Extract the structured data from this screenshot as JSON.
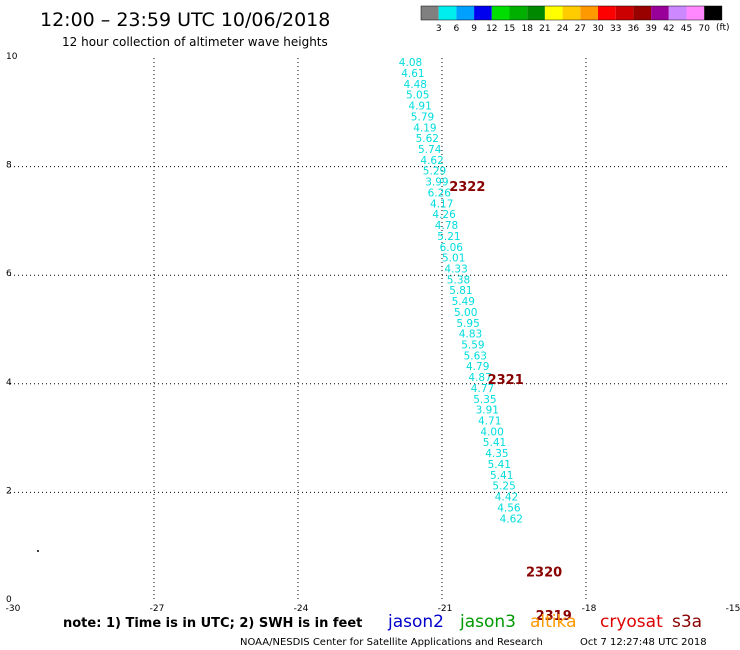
{
  "header": {
    "title": "12:00 – 23:59 UTC 10/06/2018",
    "subtitle": "12 hour collection of altimeter wave heights"
  },
  "colorbar": {
    "unit": "(ft)",
    "labels": [
      "3",
      "6",
      "9",
      "12",
      "15",
      "18",
      "21",
      "24",
      "27",
      "30",
      "33",
      "36",
      "39",
      "42",
      "45",
      "70"
    ],
    "colors": [
      "#808080",
      "#00eeee",
      "#00a0ff",
      "#0000ee",
      "#00dd00",
      "#00b000",
      "#008800",
      "#ffff00",
      "#ffcc00",
      "#ff9900",
      "#ff0000",
      "#cc0000",
      "#990000",
      "#990099",
      "#cc88ff",
      "#ff88ff",
      "#000000"
    ]
  },
  "footer": {
    "note": "note: 1) Time is in UTC; 2) SWH is in feet",
    "credit": "NOAA/NESDIS Center for Satellite Applications and Research",
    "timestamp": "Oct  7 12:27:48 UTC 2018",
    "satellites": [
      {
        "name": "jason2",
        "color": "#0000cc"
      },
      {
        "name": "jason3",
        "color": "#009900"
      },
      {
        "name": "altika",
        "color": "#ff9900"
      },
      {
        "name": "cryosat",
        "color": "#dd0000"
      },
      {
        "name": "s3a",
        "color": "#880000"
      }
    ]
  },
  "chart_data": {
    "type": "scatter",
    "title": "",
    "xlabel": "",
    "ylabel": "",
    "xlim": [
      -30,
      -15
    ],
    "ylim": [
      0,
      10
    ],
    "x_ticks": [
      -30,
      -27,
      -24,
      -21,
      -18,
      -15
    ],
    "y_ticks": [
      0,
      2,
      4,
      6,
      8,
      10
    ],
    "grid": true,
    "point_color": "#00dddd",
    "series": [
      {
        "values": [
          {
            "x": -21.9,
            "y": 9.85,
            "label": "4.08"
          },
          {
            "x": -21.85,
            "y": 9.65,
            "label": "4.61"
          },
          {
            "x": -21.8,
            "y": 9.45,
            "label": "4.48"
          },
          {
            "x": -21.75,
            "y": 9.25,
            "label": "5.05"
          },
          {
            "x": -21.7,
            "y": 9.05,
            "label": "4.91"
          },
          {
            "x": -21.65,
            "y": 8.85,
            "label": "5.79"
          },
          {
            "x": -21.6,
            "y": 8.65,
            "label": "4.19"
          },
          {
            "x": -21.55,
            "y": 8.45,
            "label": "5.62"
          },
          {
            "x": -21.5,
            "y": 8.25,
            "label": "5.74"
          },
          {
            "x": -21.45,
            "y": 8.05,
            "label": "4.62"
          },
          {
            "x": -21.4,
            "y": 7.85,
            "label": "5.29"
          },
          {
            "x": -21.35,
            "y": 7.65,
            "label": "3.99"
          },
          {
            "x": -21.3,
            "y": 7.45,
            "label": "6.26"
          },
          {
            "x": -21.25,
            "y": 7.25,
            "label": "4.17"
          },
          {
            "x": -21.2,
            "y": 7.05,
            "label": "4.26"
          },
          {
            "x": -21.15,
            "y": 6.85,
            "label": "4.78"
          },
          {
            "x": -21.1,
            "y": 6.65,
            "label": "5.21"
          },
          {
            "x": -21.05,
            "y": 6.45,
            "label": "6.06"
          },
          {
            "x": -21.0,
            "y": 6.25,
            "label": "5.01"
          },
          {
            "x": -20.95,
            "y": 6.05,
            "label": "4.33"
          },
          {
            "x": -20.9,
            "y": 5.85,
            "label": "5.38"
          },
          {
            "x": -20.85,
            "y": 5.65,
            "label": "5.81"
          },
          {
            "x": -20.8,
            "y": 5.45,
            "label": "5.49"
          },
          {
            "x": -20.75,
            "y": 5.25,
            "label": "5.00"
          },
          {
            "x": -20.7,
            "y": 5.05,
            "label": "5.95"
          },
          {
            "x": -20.65,
            "y": 4.85,
            "label": "4.83"
          },
          {
            "x": -20.6,
            "y": 4.65,
            "label": "5.59"
          },
          {
            "x": -20.55,
            "y": 4.45,
            "label": "5.63"
          },
          {
            "x": -20.5,
            "y": 4.25,
            "label": "4.79"
          },
          {
            "x": -20.45,
            "y": 4.05,
            "label": "4.87"
          },
          {
            "x": -20.4,
            "y": 3.85,
            "label": "4.77"
          },
          {
            "x": -20.35,
            "y": 3.65,
            "label": "5.35"
          },
          {
            "x": -20.3,
            "y": 3.45,
            "label": "3.91"
          },
          {
            "x": -20.25,
            "y": 3.25,
            "label": "4.71"
          },
          {
            "x": -20.2,
            "y": 3.05,
            "label": "4.00"
          },
          {
            "x": -20.15,
            "y": 2.85,
            "label": "5.41"
          },
          {
            "x": -20.1,
            "y": 2.65,
            "label": "4.35"
          },
          {
            "x": -20.05,
            "y": 2.45,
            "label": "5.41"
          },
          {
            "x": -20.0,
            "y": 2.25,
            "label": "5.41"
          },
          {
            "x": -19.95,
            "y": 2.05,
            "label": "5.25"
          },
          {
            "x": -19.9,
            "y": 1.85,
            "label": "4.42"
          },
          {
            "x": -19.85,
            "y": 1.65,
            "label": "4.56"
          },
          {
            "x": -19.8,
            "y": 1.45,
            "label": "4.62"
          }
        ]
      }
    ],
    "annotations": [
      {
        "text": "2322",
        "x": -20.85,
        "y": 7.55,
        "color": "#880000"
      },
      {
        "text": "2321",
        "x": -20.05,
        "y": 4.0,
        "color": "#880000"
      },
      {
        "text": "2320",
        "x": -19.25,
        "y": 0.45,
        "color": "#880000"
      },
      {
        "text": "2319",
        "x": -19.05,
        "y": -0.35,
        "color": "#880000"
      }
    ]
  }
}
